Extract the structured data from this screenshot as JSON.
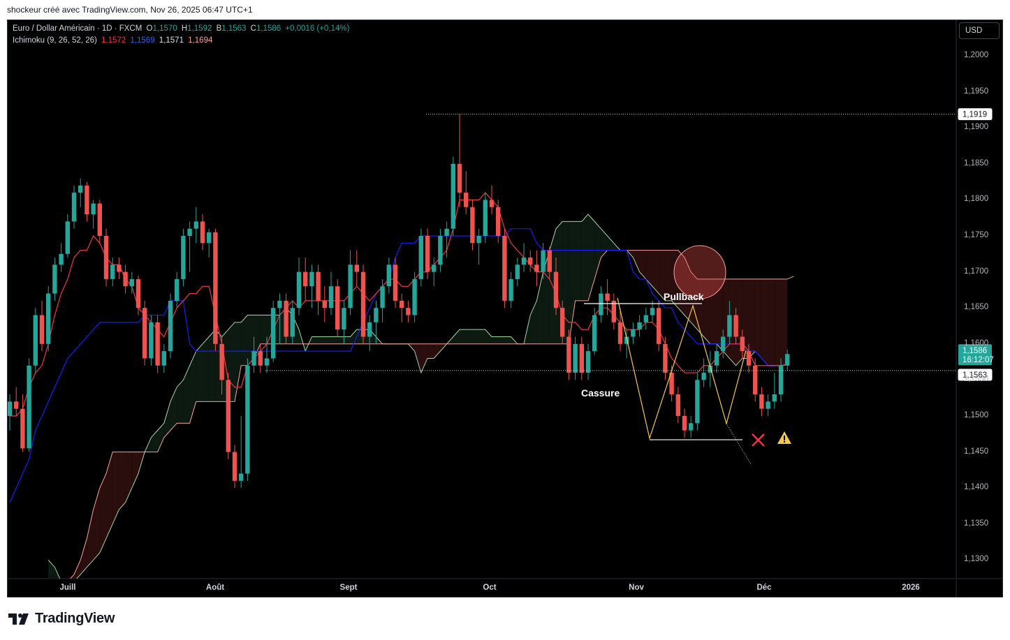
{
  "caption": "shockeur créé avec TradingView.com, Nov 26, 2025 06:47 UTC+1",
  "legend": {
    "symbol": "Euro / Dollar Américain · 1D · FXCM",
    "o_label": "O",
    "o_value": "1,1570",
    "h_label": "H",
    "h_value": "1,1592",
    "b_label": "B",
    "b_value": "1,1563",
    "c_label": "C",
    "c_value": "1,1586",
    "change": "+0,0016 (+0,14%)",
    "ichimoku_label": "Ichimoku (9, 26, 52, 26)",
    "ichimoku_values": [
      "1,1572",
      "1,1569",
      "1,1571",
      "1,1694"
    ]
  },
  "currency_button": "USD",
  "brand": "TradingView",
  "colors": {
    "up": "#26a69a",
    "down": "#ef5350",
    "tenkan": "#f23645",
    "kijun": "#1a1aff",
    "spanA": "#a5d6a7",
    "spanB": "#f7a399",
    "cloud_bull": "#0d1a12",
    "cloud_bear": "#2a0d0d"
  },
  "chart_data": {
    "type": "candlestick",
    "yticks": [
      "1,2000",
      "1,1950",
      "1,1900",
      "1,1850",
      "1,1800",
      "1,1750",
      "1,1700",
      "1,1650",
      "1,1600",
      "1,1550",
      "1,1500",
      "1,1450",
      "1,1400",
      "1,1350",
      "1,1300"
    ],
    "xticks": [
      "Juill",
      "Août",
      "Sept",
      "Oct",
      "Nov",
      "Déc",
      "2026"
    ],
    "price_labels": {
      "high": "1,1919",
      "last": "1,1586",
      "countdown": "16:12:07",
      "level": "1,1563"
    },
    "annotations": [
      "Pullback",
      "Cassure"
    ],
    "ohlc": [
      [
        1.15,
        1.153,
        1.148,
        1.152
      ],
      [
        1.152,
        1.154,
        1.15,
        1.151
      ],
      [
        1.151,
        1.153,
        1.145,
        1.1455
      ],
      [
        1.1455,
        1.158,
        1.145,
        1.157
      ],
      [
        1.157,
        1.165,
        1.156,
        1.164
      ],
      [
        1.164,
        1.166,
        1.159,
        1.16
      ],
      [
        1.16,
        1.168,
        1.159,
        1.167
      ],
      [
        1.167,
        1.172,
        1.166,
        1.171
      ],
      [
        1.171,
        1.174,
        1.17,
        1.1725
      ],
      [
        1.1725,
        1.178,
        1.172,
        1.177
      ],
      [
        1.177,
        1.182,
        1.176,
        1.181
      ],
      [
        1.181,
        1.183,
        1.179,
        1.182
      ],
      [
        1.182,
        1.1825,
        1.177,
        1.178
      ],
      [
        1.178,
        1.18,
        1.176,
        1.1795
      ],
      [
        1.1795,
        1.18,
        1.174,
        1.175
      ],
      [
        1.175,
        1.176,
        1.168,
        1.169
      ],
      [
        1.169,
        1.172,
        1.168,
        1.171
      ],
      [
        1.171,
        1.172,
        1.169,
        1.17
      ],
      [
        1.17,
        1.171,
        1.167,
        1.168
      ],
      [
        1.168,
        1.17,
        1.167,
        1.169
      ],
      [
        1.169,
        1.1695,
        1.164,
        1.165
      ],
      [
        1.165,
        1.166,
        1.157,
        1.158
      ],
      [
        1.158,
        1.164,
        1.157,
        1.163
      ],
      [
        1.163,
        1.164,
        1.156,
        1.157
      ],
      [
        1.157,
        1.16,
        1.156,
        1.159
      ],
      [
        1.159,
        1.167,
        1.158,
        1.166
      ],
      [
        1.166,
        1.17,
        1.165,
        1.169
      ],
      [
        1.169,
        1.176,
        1.168,
        1.175
      ],
      [
        1.175,
        1.177,
        1.17,
        1.176
      ],
      [
        1.176,
        1.179,
        1.174,
        1.177
      ],
      [
        1.177,
        1.178,
        1.173,
        1.174
      ],
      [
        1.174,
        1.176,
        1.172,
        1.1755
      ],
      [
        1.1755,
        1.176,
        1.159,
        1.16
      ],
      [
        1.16,
        1.161,
        1.153,
        1.155
      ],
      [
        1.155,
        1.156,
        1.144,
        1.145
      ],
      [
        1.145,
        1.146,
        1.14,
        1.141
      ],
      [
        1.141,
        1.15,
        1.14,
        1.142
      ],
      [
        1.142,
        1.158,
        1.141,
        1.157
      ],
      [
        1.157,
        1.161,
        1.156,
        1.159
      ],
      [
        1.159,
        1.16,
        1.156,
        1.157
      ],
      [
        1.157,
        1.161,
        1.156,
        1.158
      ],
      [
        1.158,
        1.166,
        1.1575,
        1.165
      ],
      [
        1.165,
        1.167,
        1.16,
        1.166
      ],
      [
        1.166,
        1.167,
        1.16,
        1.161
      ],
      [
        1.161,
        1.166,
        1.16,
        1.165
      ],
      [
        1.165,
        1.172,
        1.164,
        1.17
      ],
      [
        1.17,
        1.172,
        1.166,
        1.168
      ],
      [
        1.168,
        1.171,
        1.165,
        1.17
      ],
      [
        1.17,
        1.171,
        1.164,
        1.166
      ],
      [
        1.166,
        1.168,
        1.163,
        1.165
      ],
      [
        1.165,
        1.17,
        1.164,
        1.168
      ],
      [
        1.168,
        1.169,
        1.161,
        1.162
      ],
      [
        1.162,
        1.166,
        1.16,
        1.165
      ],
      [
        1.165,
        1.173,
        1.164,
        1.171
      ],
      [
        1.171,
        1.173,
        1.168,
        1.17
      ],
      [
        1.17,
        1.171,
        1.16,
        1.161
      ],
      [
        1.161,
        1.164,
        1.159,
        1.163
      ],
      [
        1.163,
        1.166,
        1.16,
        1.165
      ],
      [
        1.165,
        1.169,
        1.163,
        1.168
      ],
      [
        1.168,
        1.172,
        1.167,
        1.171
      ],
      [
        1.171,
        1.172,
        1.165,
        1.166
      ],
      [
        1.166,
        1.167,
        1.163,
        1.165
      ],
      [
        1.165,
        1.166,
        1.163,
        1.164
      ],
      [
        1.164,
        1.17,
        1.163,
        1.169
      ],
      [
        1.169,
        1.176,
        1.168,
        1.175
      ],
      [
        1.175,
        1.176,
        1.169,
        1.17
      ],
      [
        1.17,
        1.172,
        1.168,
        1.171
      ],
      [
        1.171,
        1.176,
        1.17,
        1.175
      ],
      [
        1.175,
        1.177,
        1.172,
        1.176
      ],
      [
        1.176,
        1.186,
        1.175,
        1.185
      ],
      [
        1.185,
        1.1919,
        1.179,
        1.181
      ],
      [
        1.181,
        1.184,
        1.178,
        1.179
      ],
      [
        1.179,
        1.18,
        1.173,
        1.174
      ],
      [
        1.174,
        1.176,
        1.171,
        1.175
      ],
      [
        1.175,
        1.181,
        1.174,
        1.18
      ],
      [
        1.18,
        1.182,
        1.178,
        1.179
      ],
      [
        1.179,
        1.18,
        1.174,
        1.175
      ],
      [
        1.175,
        1.176,
        1.165,
        1.166
      ],
      [
        1.166,
        1.17,
        1.165,
        1.169
      ],
      [
        1.169,
        1.172,
        1.168,
        1.171
      ],
      [
        1.171,
        1.174,
        1.17,
        1.172
      ],
      [
        1.172,
        1.173,
        1.17,
        1.171
      ],
      [
        1.171,
        1.173,
        1.168,
        1.17
      ],
      [
        1.17,
        1.174,
        1.169,
        1.173
      ],
      [
        1.173,
        1.1735,
        1.169,
        1.17
      ],
      [
        1.17,
        1.172,
        1.164,
        1.165
      ],
      [
        1.165,
        1.166,
        1.16,
        1.161
      ],
      [
        1.161,
        1.162,
        1.155,
        1.156
      ],
      [
        1.156,
        1.161,
        1.155,
        1.16
      ],
      [
        1.16,
        1.161,
        1.155,
        1.156
      ],
      [
        1.156,
        1.16,
        1.155,
        1.159
      ],
      [
        1.159,
        1.165,
        1.1585,
        1.164
      ],
      [
        1.164,
        1.168,
        1.163,
        1.167
      ],
      [
        1.167,
        1.169,
        1.164,
        1.166
      ],
      [
        1.166,
        1.167,
        1.162,
        1.163
      ],
      [
        1.163,
        1.165,
        1.159,
        1.16
      ],
      [
        1.16,
        1.162,
        1.158,
        1.161
      ],
      [
        1.161,
        1.163,
        1.16,
        1.162
      ],
      [
        1.162,
        1.164,
        1.161,
        1.163
      ],
      [
        1.163,
        1.165,
        1.162,
        1.164
      ],
      [
        1.164,
        1.166,
        1.163,
        1.165
      ],
      [
        1.165,
        1.166,
        1.159,
        1.16
      ],
      [
        1.16,
        1.161,
        1.155,
        1.156
      ],
      [
        1.156,
        1.157,
        1.152,
        1.153
      ],
      [
        1.153,
        1.154,
        1.149,
        1.15
      ],
      [
        1.15,
        1.151,
        1.147,
        1.148
      ],
      [
        1.148,
        1.15,
        1.147,
        1.149
      ],
      [
        1.149,
        1.156,
        1.148,
        1.155
      ],
      [
        1.155,
        1.158,
        1.154,
        1.156
      ],
      [
        1.156,
        1.159,
        1.154,
        1.157
      ],
      [
        1.157,
        1.16,
        1.156,
        1.159
      ],
      [
        1.159,
        1.162,
        1.158,
        1.161
      ],
      [
        1.161,
        1.166,
        1.16,
        1.164
      ],
      [
        1.164,
        1.165,
        1.16,
        1.161
      ],
      [
        1.161,
        1.162,
        1.158,
        1.159
      ],
      [
        1.159,
        1.16,
        1.156,
        1.157
      ],
      [
        1.157,
        1.158,
        1.152,
        1.153
      ],
      [
        1.153,
        1.154,
        1.15,
        1.151
      ],
      [
        1.151,
        1.153,
        1.15,
        1.152
      ],
      [
        1.152,
        1.156,
        1.151,
        1.153
      ],
      [
        1.153,
        1.158,
        1.152,
        1.157
      ],
      [
        1.157,
        1.1592,
        1.1563,
        1.1586
      ]
    ],
    "tenkan": [
      1.15,
      1.15,
      1.151,
      1.154,
      1.156,
      1.157,
      1.16,
      1.164,
      1.167,
      1.169,
      1.172,
      1.173,
      1.173,
      1.175,
      1.174,
      1.172,
      1.171,
      1.171,
      1.169,
      1.168,
      1.165,
      1.164,
      1.163,
      1.162,
      1.161,
      1.163,
      1.165,
      1.166,
      1.167,
      1.167,
      1.168,
      1.168,
      1.164,
      1.16,
      1.155,
      1.154,
      1.154,
      1.157,
      1.158,
      1.159,
      1.16,
      1.162,
      1.164,
      1.165,
      1.166,
      1.165,
      1.166,
      1.166,
      1.166,
      1.166,
      1.166,
      1.166,
      1.166,
      1.167,
      1.168,
      1.167,
      1.166,
      1.167,
      1.168,
      1.169,
      1.169,
      1.168,
      1.168,
      1.169,
      1.17,
      1.17,
      1.171,
      1.172,
      1.173,
      1.176,
      1.18,
      1.18,
      1.18,
      1.18,
      1.181,
      1.18,
      1.179,
      1.176,
      1.174,
      1.173,
      1.172,
      1.171,
      1.17,
      1.17,
      1.169,
      1.167,
      1.164,
      1.163,
      1.163,
      1.162,
      1.162,
      1.164,
      1.165,
      1.165,
      1.164,
      1.163,
      1.162,
      1.162,
      1.162,
      1.163,
      1.163,
      1.162,
      1.16,
      1.158,
      1.157,
      1.156,
      1.156,
      1.156,
      1.157,
      1.157,
      1.158,
      1.159,
      1.16,
      1.16,
      1.16,
      1.159,
      1.157,
      1.157,
      1.157,
      1.157,
      1.157,
      1.1572
    ],
    "kijun": [
      1.138,
      1.14,
      1.142,
      1.144,
      1.148,
      1.15,
      1.152,
      1.154,
      1.156,
      1.158,
      1.159,
      1.16,
      1.161,
      1.162,
      1.163,
      1.163,
      1.163,
      1.163,
      1.163,
      1.163,
      1.163,
      1.164,
      1.164,
      1.164,
      1.164,
      1.166,
      1.166,
      1.166,
      1.16,
      1.159,
      1.159,
      1.159,
      1.159,
      1.159,
      1.159,
      1.159,
      1.159,
      1.159,
      1.159,
      1.159,
      1.159,
      1.159,
      1.159,
      1.159,
      1.159,
      1.159,
      1.159,
      1.159,
      1.159,
      1.159,
      1.159,
      1.159,
      1.159,
      1.159,
      1.161,
      1.163,
      1.165,
      1.167,
      1.168,
      1.169,
      1.172,
      1.174,
      1.174,
      1.174,
      1.175,
      1.175,
      1.175,
      1.175,
      1.175,
      1.175,
      1.175,
      1.175,
      1.175,
      1.175,
      1.175,
      1.175,
      1.175,
      1.175,
      1.176,
      1.176,
      1.176,
      1.176,
      1.174,
      1.173,
      1.173,
      1.173,
      1.173,
      1.173,
      1.173,
      1.173,
      1.173,
      1.173,
      1.173,
      1.173,
      1.173,
      1.173,
      1.173,
      1.17,
      1.169,
      1.169,
      1.167,
      1.166,
      1.165,
      1.165,
      1.163,
      1.162,
      1.161,
      1.16,
      1.16,
      1.16,
      1.16,
      1.16,
      1.16,
      1.16,
      1.16,
      1.159,
      1.159,
      1.158,
      1.157,
      1.1569
    ],
    "spanA": [
      1.13,
      1.129,
      1.127,
      1.125,
      1.127,
      1.128,
      1.129,
      1.13,
      1.131,
      1.133,
      1.135,
      1.137,
      1.138,
      1.14,
      1.142,
      1.145,
      1.147,
      1.148,
      1.149,
      1.152,
      1.154,
      1.155,
      1.157,
      1.159,
      1.16,
      1.161,
      1.162,
      1.161,
      1.162,
      1.163,
      1.163,
      1.164,
      1.164,
      1.164,
      1.164,
      1.164,
      1.164,
      1.165,
      1.164,
      1.162,
      1.159,
      1.161,
      1.161,
      1.161,
      1.161,
      1.161,
      1.161,
      1.161,
      1.162,
      1.162,
      1.162,
      1.161,
      1.16,
      1.16,
      1.16,
      1.16,
      1.16,
      1.159,
      1.156,
      1.158,
      1.158,
      1.159,
      1.16,
      1.161,
      1.162,
      1.162,
      1.162,
      1.162,
      1.162,
      1.161,
      1.161,
      1.161,
      1.161,
      1.16,
      1.16,
      1.164,
      1.166,
      1.17,
      1.173,
      1.176,
      1.177,
      1.177,
      1.177,
      1.177,
      1.178,
      1.177,
      1.176,
      1.175,
      1.174,
      1.173,
      1.173,
      1.172,
      1.17,
      1.169,
      1.168,
      1.167,
      1.166,
      1.166,
      1.165,
      1.164,
      1.163,
      1.162,
      1.161,
      1.16,
      1.16,
      1.159,
      1.158,
      1.157,
      1.158,
      1.158,
      1.159,
      1.158,
      1.157,
      1.157,
      1.157,
      1.1571
    ],
    "spanB": [
      1.12,
      1.123,
      1.125,
      1.127,
      1.128,
      1.13,
      1.133,
      1.137,
      1.14,
      1.142,
      1.145,
      1.145,
      1.145,
      1.145,
      1.145,
      1.145,
      1.145,
      1.145,
      1.147,
      1.148,
      1.149,
      1.149,
      1.149,
      1.152,
      1.152,
      1.152,
      1.152,
      1.152,
      1.152,
      1.152,
      1.157,
      1.157,
      1.158,
      1.16,
      1.16,
      1.16,
      1.16,
      1.16,
      1.16,
      1.16,
      1.16,
      1.16,
      1.16,
      1.16,
      1.16,
      1.16,
      1.16,
      1.16,
      1.16,
      1.16,
      1.16,
      1.16,
      1.16,
      1.16,
      1.16,
      1.16,
      1.16,
      1.16,
      1.16,
      1.16,
      1.16,
      1.16,
      1.16,
      1.16,
      1.16,
      1.16,
      1.16,
      1.16,
      1.16,
      1.16,
      1.16,
      1.16,
      1.16,
      1.16,
      1.16,
      1.16,
      1.16,
      1.16,
      1.16,
      1.16,
      1.16,
      1.16,
      1.166,
      1.166,
      1.166,
      1.169,
      1.172,
      1.173,
      1.173,
      1.173,
      1.173,
      1.173,
      1.173,
      1.173,
      1.173,
      1.173,
      1.173,
      1.173,
      1.173,
      1.172,
      1.17,
      1.169,
      1.169,
      1.169,
      1.169,
      1.169,
      1.169,
      1.169,
      1.169,
      1.169,
      1.169,
      1.169,
      1.169,
      1.169,
      1.169,
      1.169,
      1.1694
    ]
  }
}
